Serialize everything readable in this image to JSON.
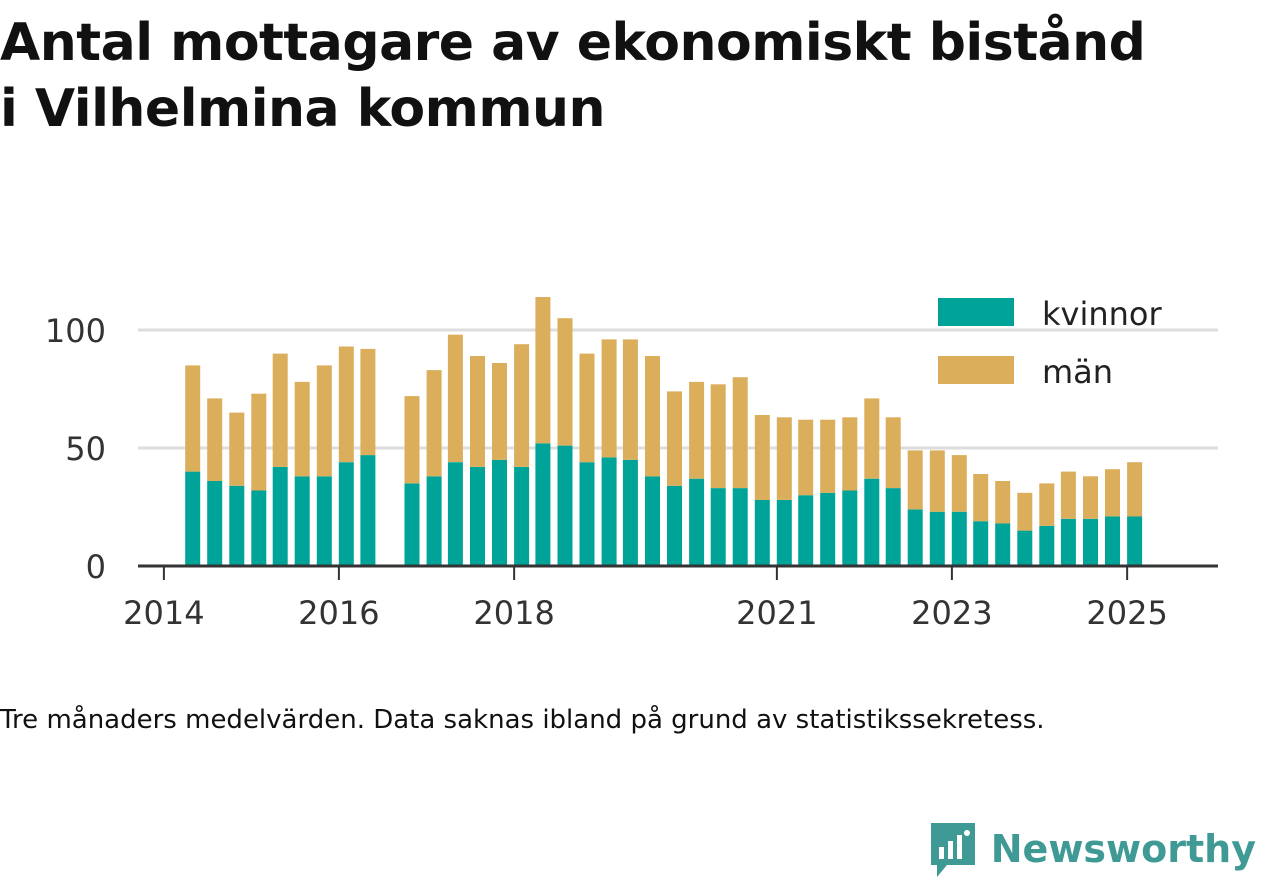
{
  "title_lines": [
    "Antal mottagare av ekonomiskt bistånd",
    "i Vilhelmina kommun"
  ],
  "footnote": "Tre månaders medelvärden. Data saknas ibland på grund av statistikssekretess.",
  "brand": "Newsworthy",
  "colors": {
    "kvinnor": "#00a398",
    "man": "#dbae5b",
    "grid": "#dddddd",
    "axis": "#333333",
    "brand": "#3f9a95"
  },
  "chart_data": {
    "type": "bar",
    "stacked": true,
    "title": "Antal mottagare av ekonomiskt bistånd i Vilhelmina kommun",
    "xlabel": "",
    "ylabel": "",
    "ylim": [
      0,
      120
    ],
    "yticks": [
      0,
      50,
      100
    ],
    "xlim": [
      "2013-09-15",
      "2026-01-15"
    ],
    "xticks": [
      {
        "label": "2014",
        "date": "2014-01-01"
      },
      {
        "label": "2016",
        "date": "2016-01-01"
      },
      {
        "label": "2018",
        "date": "2018-01-01"
      },
      {
        "label": "2021",
        "date": "2021-01-01"
      },
      {
        "label": "2023",
        "date": "2023-01-01"
      },
      {
        "label": "2025",
        "date": "2025-01-01"
      }
    ],
    "legend": {
      "position": "top-right"
    },
    "grid": "horizontal",
    "x": [
      "2014-05-01",
      "2014-08-01",
      "2014-11-01",
      "2015-02-01",
      "2015-05-01",
      "2015-08-01",
      "2015-11-01",
      "2016-02-01",
      "2016-05-01",
      "2016-11-01",
      "2017-02-01",
      "2017-05-01",
      "2017-08-01",
      "2017-11-01",
      "2018-02-01",
      "2018-05-01",
      "2018-08-01",
      "2018-11-01",
      "2019-02-01",
      "2019-05-01",
      "2019-08-01",
      "2019-11-01",
      "2020-02-01",
      "2020-05-01",
      "2020-08-01",
      "2020-11-01",
      "2021-02-01",
      "2021-05-01",
      "2021-08-01",
      "2021-11-01",
      "2022-02-01",
      "2022-05-01",
      "2022-08-01",
      "2022-11-01",
      "2023-02-01",
      "2023-05-01",
      "2023-08-01",
      "2023-11-01",
      "2024-02-01",
      "2024-05-01",
      "2024-08-01",
      "2024-11-01",
      "2025-02-01"
    ],
    "series": [
      {
        "name": "kvinnor",
        "values": [
          40,
          36,
          34,
          32,
          42,
          38,
          38,
          44,
          47,
          35,
          38,
          44,
          42,
          45,
          42,
          52,
          51,
          44,
          46,
          45,
          38,
          34,
          37,
          33,
          33,
          28,
          28,
          30,
          31,
          32,
          37,
          33,
          24,
          23,
          23,
          19,
          18,
          15,
          17,
          20,
          20,
          21,
          21
        ]
      },
      {
        "name": "män",
        "values": [
          45,
          35,
          31,
          41,
          48,
          40,
          47,
          49,
          45,
          37,
          45,
          54,
          47,
          41,
          52,
          62,
          54,
          46,
          50,
          51,
          51,
          40,
          41,
          44,
          47,
          36,
          35,
          32,
          31,
          31,
          34,
          30,
          25,
          26,
          24,
          20,
          18,
          16,
          18,
          20,
          18,
          20,
          23
        ]
      }
    ]
  }
}
